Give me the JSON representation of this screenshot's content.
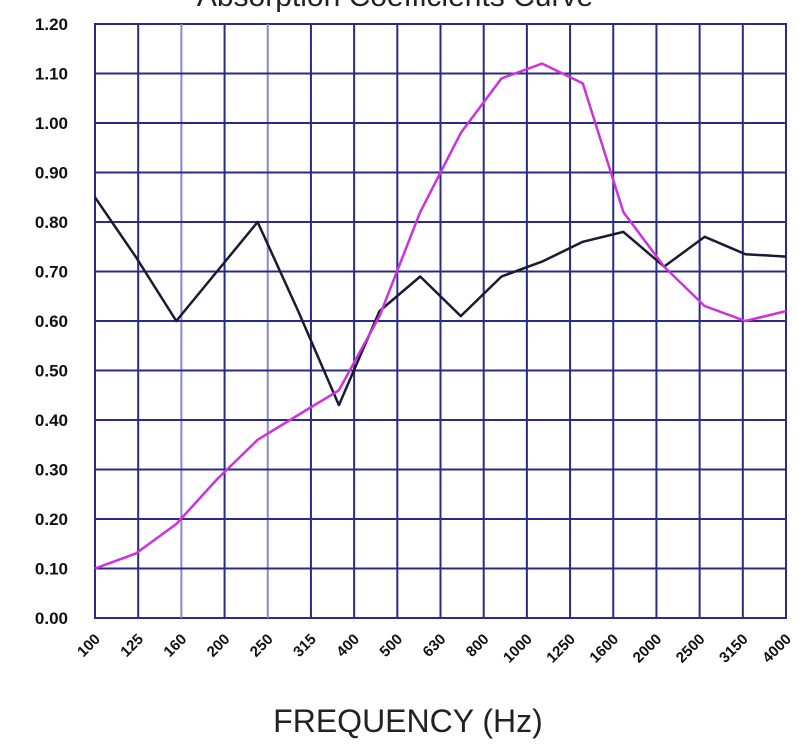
{
  "chart_data": {
    "type": "line",
    "title": "Absorption Coefficients Curve",
    "xlabel": "FREQUENCY (Hz)",
    "ylabel": "",
    "categories": [
      "100",
      "125",
      "160",
      "200",
      "250",
      "315",
      "400",
      "500",
      "630",
      "800",
      "1000",
      "1250",
      "1600",
      "2000",
      "2500",
      "3150",
      "4000"
    ],
    "y_ticks": [
      "0.00",
      "0.10",
      "0.20",
      "0.30",
      "0.40",
      "0.50",
      "0.60",
      "0.70",
      "0.80",
      "0.90",
      "1.00",
      "1.10",
      "1.20"
    ],
    "ylim": [
      0,
      1.2
    ],
    "grid": true,
    "series": [
      {
        "color": "#1a1a33",
        "points": [
          [
            0,
            0.85
          ],
          [
            0.5,
            0.73
          ],
          [
            1,
            0.6
          ],
          [
            2,
            0.8
          ],
          [
            2.5,
            0.62
          ],
          [
            3,
            0.43
          ],
          [
            3.5,
            0.62
          ],
          [
            4,
            0.69
          ],
          [
            4.5,
            0.61
          ],
          [
            5,
            0.69
          ],
          [
            5.5,
            0.72
          ],
          [
            6,
            0.76
          ],
          [
            6.5,
            0.78
          ],
          [
            7,
            0.71
          ],
          [
            7.5,
            0.77
          ],
          [
            8,
            0.735
          ],
          [
            8.5,
            0.73
          ]
        ]
      },
      {
        "color": "#cc33dd",
        "points": [
          [
            0,
            0.1
          ],
          [
            0.5,
            0.13
          ],
          [
            1,
            0.19
          ],
          [
            1.5,
            0.28
          ],
          [
            2,
            0.36
          ],
          [
            2.5,
            0.41
          ],
          [
            3,
            0.46
          ],
          [
            3.5,
            0.61
          ],
          [
            4,
            0.82
          ],
          [
            4.5,
            0.98
          ],
          [
            5,
            1.09
          ],
          [
            5.5,
            1.12
          ],
          [
            6,
            1.08
          ],
          [
            6.5,
            0.82
          ],
          [
            7,
            0.71
          ],
          [
            7.5,
            0.63
          ],
          [
            8,
            0.6
          ],
          [
            8.5,
            0.62
          ]
        ]
      }
    ]
  },
  "colors": {
    "grid": "#2a2a88",
    "grid_light": "#8888cc",
    "axis_text": "#111111"
  }
}
